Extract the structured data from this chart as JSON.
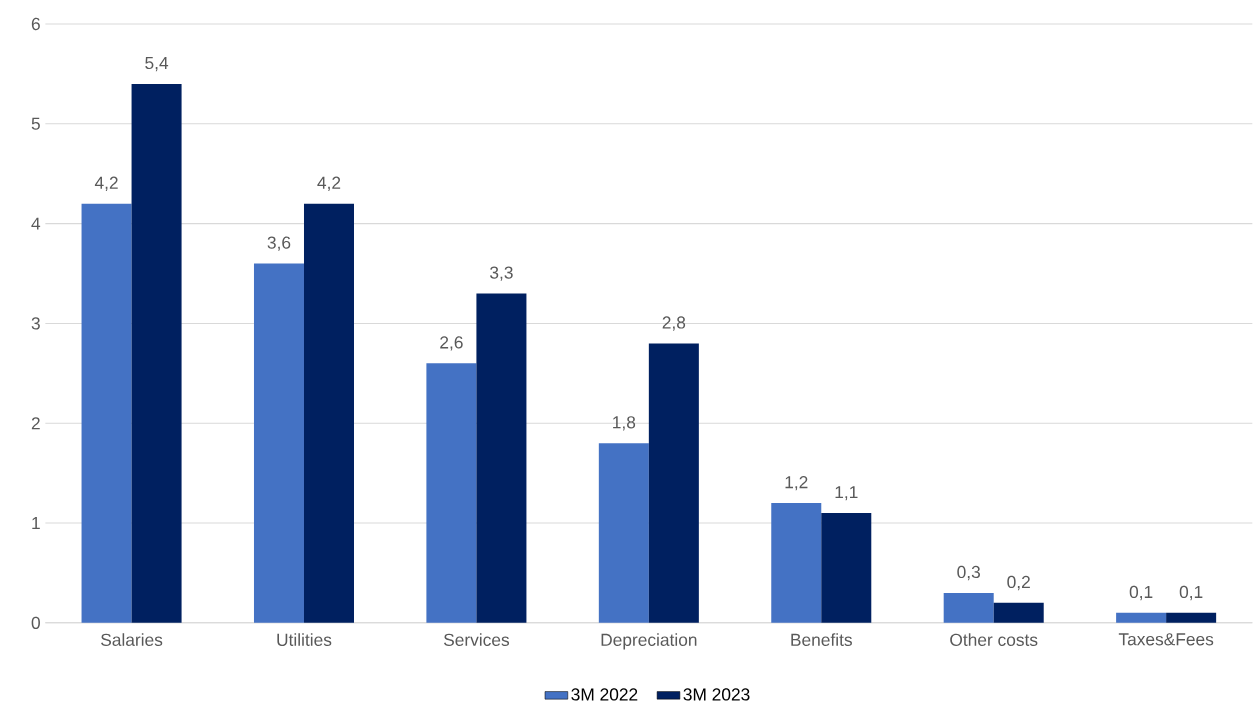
{
  "chart_data": {
    "type": "bar",
    "categories": [
      "Salaries",
      "Utilities",
      "Services",
      "Depreciation",
      "Benefits",
      "Other costs",
      "Taxes&Fees"
    ],
    "series": [
      {
        "name": "3M 2022",
        "color": "#4472c4",
        "values": [
          4.2,
          3.6,
          2.6,
          1.8,
          1.2,
          0.3,
          0.1
        ],
        "value_labels": [
          "4,2",
          "3,6",
          "2,6",
          "1,8",
          "1,2",
          "0,3",
          "0,1"
        ]
      },
      {
        "name": "3M 2023",
        "color": "#002060",
        "values": [
          5.4,
          4.2,
          3.3,
          2.8,
          1.1,
          0.2,
          0.1
        ],
        "value_labels": [
          "5,4",
          "4,2",
          "3,3",
          "2,8",
          "1,1",
          "0,2",
          "0,1"
        ]
      }
    ],
    "ylim": [
      0,
      6
    ],
    "yticks": [
      0,
      1,
      2,
      3,
      4,
      5,
      6
    ],
    "grid": "y",
    "legend": "bottom"
  }
}
